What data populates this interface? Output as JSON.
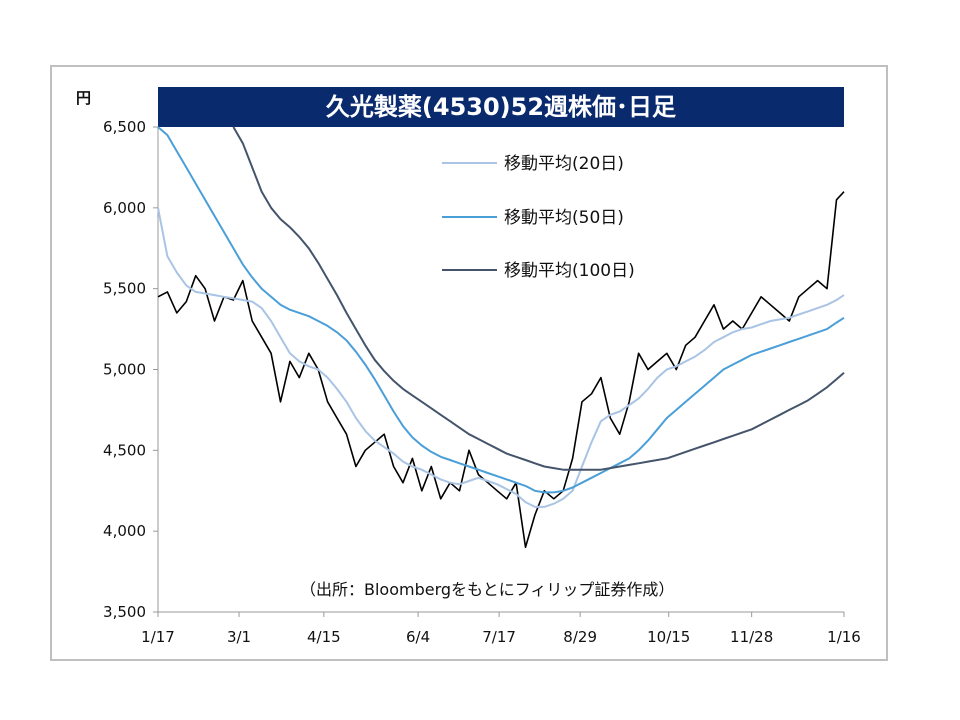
{
  "chart_data": {
    "type": "line",
    "title": "久光製薬(4530)52週株価･日足",
    "unit_label": "円",
    "source_note": "（出所：Bloombergをもとにフィリップ証券作成）",
    "ylim": [
      3500,
      6500
    ],
    "y_ticks": [
      3500,
      4000,
      4500,
      5000,
      5500,
      6000,
      6500
    ],
    "y_tick_labels": [
      "3,500",
      "4,000",
      "4,500",
      "5,000",
      "5,500",
      "6,000",
      "6,500"
    ],
    "xlim": [
      0,
      364
    ],
    "x_ticks": [
      0,
      43,
      88,
      138,
      181,
      224,
      271,
      315,
      364
    ],
    "x_tick_labels": [
      "1/17",
      "3/1",
      "4/15",
      "6/4",
      "7/17",
      "8/29",
      "10/15",
      "11/28",
      "1/16"
    ],
    "legend_position": "top-right",
    "grid": false,
    "series": [
      {
        "name": "",
        "color": "#000000",
        "x": [
          0,
          5,
          10,
          15,
          20,
          25,
          30,
          35,
          40,
          45,
          50,
          55,
          60,
          65,
          70,
          75,
          80,
          85,
          90,
          95,
          100,
          105,
          110,
          115,
          120,
          125,
          130,
          135,
          140,
          145,
          150,
          155,
          160,
          165,
          170,
          175,
          180,
          185,
          190,
          195,
          200,
          205,
          210,
          215,
          220,
          225,
          230,
          235,
          240,
          245,
          250,
          255,
          260,
          265,
          270,
          275,
          280,
          285,
          290,
          295,
          300,
          305,
          310,
          315,
          320,
          325,
          330,
          335,
          340,
          345,
          350,
          355,
          360,
          364
        ],
        "values": [
          5450,
          5480,
          5350,
          5420,
          5580,
          5500,
          5300,
          5450,
          5430,
          5550,
          5300,
          5200,
          5100,
          4800,
          5050,
          4950,
          5100,
          5000,
          4800,
          4700,
          4600,
          4400,
          4500,
          4550,
          4600,
          4400,
          4300,
          4450,
          4250,
          4400,
          4200,
          4300,
          4250,
          4500,
          4350,
          4300,
          4250,
          4200,
          4300,
          3900,
          4100,
          4250,
          4200,
          4250,
          4450,
          4800,
          4850,
          4950,
          4700,
          4600,
          4800,
          5100,
          5000,
          5050,
          5100,
          5000,
          5150,
          5200,
          5300,
          5400,
          5250,
          5300,
          5250,
          5350,
          5450,
          5400,
          5350,
          5300,
          5450,
          5500,
          5550,
          5500,
          6050,
          6100
        ]
      },
      {
        "name": "移動平均(20日)",
        "color": "#a9c4e4",
        "x": [
          0,
          5,
          10,
          15,
          20,
          25,
          30,
          35,
          40,
          45,
          50,
          55,
          60,
          65,
          70,
          75,
          80,
          85,
          90,
          95,
          100,
          105,
          110,
          115,
          120,
          125,
          130,
          135,
          140,
          145,
          150,
          155,
          160,
          165,
          170,
          175,
          180,
          185,
          190,
          195,
          200,
          205,
          210,
          215,
          220,
          225,
          230,
          235,
          240,
          245,
          250,
          255,
          260,
          265,
          270,
          275,
          280,
          285,
          290,
          295,
          300,
          305,
          310,
          315,
          320,
          325,
          330,
          335,
          340,
          345,
          350,
          355,
          360,
          364
        ],
        "values": [
          6000,
          5700,
          5600,
          5520,
          5480,
          5470,
          5460,
          5450,
          5440,
          5430,
          5420,
          5380,
          5300,
          5200,
          5100,
          5050,
          5020,
          5000,
          4950,
          4880,
          4800,
          4700,
          4620,
          4560,
          4520,
          4480,
          4430,
          4400,
          4380,
          4350,
          4320,
          4300,
          4290,
          4310,
          4330,
          4310,
          4290,
          4260,
          4230,
          4180,
          4150,
          4150,
          4170,
          4200,
          4250,
          4400,
          4550,
          4680,
          4720,
          4740,
          4780,
          4820,
          4880,
          4950,
          5000,
          5020,
          5050,
          5080,
          5120,
          5170,
          5200,
          5230,
          5250,
          5260,
          5280,
          5300,
          5310,
          5320,
          5340,
          5360,
          5380,
          5400,
          5430,
          5460
        ]
      },
      {
        "name": "移動平均(50日)",
        "color": "#4a9fd8",
        "x": [
          0,
          5,
          10,
          15,
          20,
          25,
          30,
          35,
          40,
          45,
          50,
          55,
          60,
          65,
          70,
          75,
          80,
          85,
          90,
          95,
          100,
          105,
          110,
          115,
          120,
          125,
          130,
          135,
          140,
          145,
          150,
          155,
          160,
          165,
          170,
          175,
          180,
          185,
          190,
          195,
          200,
          205,
          210,
          215,
          220,
          225,
          230,
          235,
          240,
          245,
          250,
          255,
          260,
          265,
          270,
          275,
          280,
          285,
          290,
          295,
          300,
          305,
          310,
          315,
          320,
          325,
          330,
          335,
          340,
          345,
          350,
          355,
          360,
          364
        ],
        "values": [
          6500,
          6450,
          6350,
          6250,
          6150,
          6050,
          5950,
          5850,
          5750,
          5650,
          5570,
          5500,
          5450,
          5400,
          5370,
          5350,
          5330,
          5300,
          5270,
          5230,
          5180,
          5110,
          5030,
          4940,
          4840,
          4740,
          4650,
          4580,
          4530,
          4490,
          4460,
          4440,
          4420,
          4400,
          4380,
          4360,
          4340,
          4320,
          4300,
          4280,
          4250,
          4240,
          4240,
          4250,
          4270,
          4300,
          4330,
          4360,
          4390,
          4420,
          4450,
          4500,
          4560,
          4630,
          4700,
          4750,
          4800,
          4850,
          4900,
          4950,
          5000,
          5030,
          5060,
          5090,
          5110,
          5130,
          5150,
          5170,
          5190,
          5210,
          5230,
          5250,
          5290,
          5320
        ]
      },
      {
        "name": "移動平均(100日)",
        "color": "#44546a",
        "x": [
          40,
          45,
          50,
          55,
          60,
          65,
          70,
          75,
          80,
          85,
          90,
          95,
          100,
          105,
          110,
          115,
          120,
          125,
          130,
          135,
          140,
          145,
          150,
          155,
          160,
          165,
          170,
          175,
          180,
          185,
          190,
          195,
          200,
          205,
          210,
          215,
          220,
          225,
          230,
          235,
          240,
          245,
          250,
          255,
          260,
          265,
          270,
          275,
          280,
          285,
          290,
          295,
          300,
          305,
          310,
          315,
          320,
          325,
          330,
          335,
          340,
          345,
          350,
          355,
          360,
          364
        ],
        "values": [
          6500,
          6400,
          6250,
          6100,
          6000,
          5930,
          5880,
          5820,
          5750,
          5660,
          5560,
          5460,
          5350,
          5250,
          5150,
          5060,
          4990,
          4930,
          4880,
          4840,
          4800,
          4760,
          4720,
          4680,
          4640,
          4600,
          4570,
          4540,
          4510,
          4480,
          4460,
          4440,
          4420,
          4400,
          4390,
          4380,
          4380,
          4380,
          4380,
          4380,
          4390,
          4400,
          4410,
          4420,
          4430,
          4440,
          4450,
          4470,
          4490,
          4510,
          4530,
          4550,
          4570,
          4590,
          4610,
          4630,
          4660,
          4690,
          4720,
          4750,
          4780,
          4810,
          4850,
          4890,
          4940,
          4980
        ]
      }
    ]
  }
}
